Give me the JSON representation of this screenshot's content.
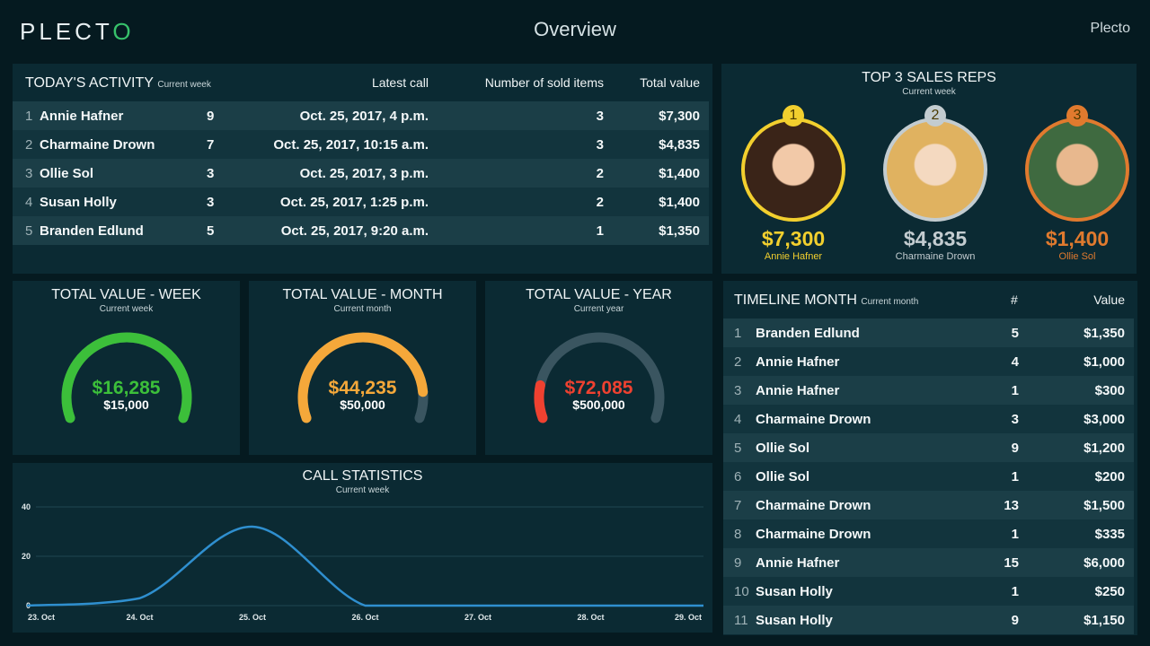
{
  "header": {
    "logo": "PLECT",
    "logo_mark": "O",
    "title": "Overview",
    "brand": "Plecto"
  },
  "activity": {
    "title": "TODAY'S ACTIVITY",
    "subtitle": "Current week",
    "columns": [
      "Latest call",
      "Number of sold items",
      "Total value"
    ],
    "rows": [
      {
        "rank": "1",
        "name": "Annie Hafner",
        "calls": "9",
        "latest": "Oct. 25, 2017, 4 p.m.",
        "items": "3",
        "value": "$7,300"
      },
      {
        "rank": "2",
        "name": "Charmaine Drown",
        "calls": "7",
        "latest": "Oct. 25, 2017, 10:15 a.m.",
        "items": "3",
        "value": "$4,835"
      },
      {
        "rank": "3",
        "name": "Ollie Sol",
        "calls": "3",
        "latest": "Oct. 25, 2017, 3 p.m.",
        "items": "2",
        "value": "$1,400"
      },
      {
        "rank": "4",
        "name": "Susan Holly",
        "calls": "3",
        "latest": "Oct. 25, 2017, 1:25 p.m.",
        "items": "2",
        "value": "$1,400"
      },
      {
        "rank": "5",
        "name": "Branden Edlund",
        "calls": "5",
        "latest": "Oct. 25, 2017, 9:20 a.m.",
        "items": "1",
        "value": "$1,350"
      }
    ]
  },
  "top3": {
    "title": "TOP 3 SALES REPS",
    "subtitle": "Current week",
    "reps": [
      {
        "rank": "1",
        "value": "$7,300",
        "name": "Annie Hafner",
        "color": "#f2cf2e"
      },
      {
        "rank": "2",
        "value": "$4,835",
        "name": "Charmaine Drown",
        "color": "#c3ccd0"
      },
      {
        "rank": "3",
        "value": "$1,400",
        "name": "Ollie Sol",
        "color": "#e07a2e"
      }
    ]
  },
  "gauges": [
    {
      "title": "TOTAL VALUE - WEEK",
      "subtitle": "Current week",
      "value": "$16,285",
      "target": "$15,000",
      "fraction": 1.0,
      "color": "#3cbf3a"
    },
    {
      "title": "TOTAL VALUE - MONTH",
      "subtitle": "Current month",
      "value": "$44,235",
      "target": "$50,000",
      "fraction": 0.885,
      "color": "#f5a83a"
    },
    {
      "title": "TOTAL VALUE - YEAR",
      "subtitle": "Current year",
      "value": "$72,085",
      "target": "$500,000",
      "fraction": 0.144,
      "color": "#ef4130"
    }
  ],
  "chart_data": {
    "type": "line",
    "title": "CALL STATISTICS",
    "subtitle": "Current week",
    "categories": [
      "23. Oct",
      "24. Oct",
      "25. Oct",
      "26. Oct",
      "27. Oct",
      "28. Oct",
      "29. Oct"
    ],
    "values": [
      0,
      3,
      32,
      0,
      0,
      0,
      0
    ],
    "yticks": [
      "0",
      "20",
      "40"
    ],
    "ylim": [
      0,
      40
    ],
    "grid": true,
    "color": "#2f8fcf"
  },
  "timeline": {
    "title": "TIMELINE MONTH",
    "subtitle": "Current month",
    "columns": [
      "#",
      "Value"
    ],
    "rows": [
      {
        "rank": "1",
        "name": "Branden Edlund",
        "count": "5",
        "value": "$1,350"
      },
      {
        "rank": "2",
        "name": "Annie Hafner",
        "count": "4",
        "value": "$1,000"
      },
      {
        "rank": "3",
        "name": "Annie Hafner",
        "count": "1",
        "value": "$300"
      },
      {
        "rank": "4",
        "name": "Charmaine Drown",
        "count": "3",
        "value": "$3,000"
      },
      {
        "rank": "5",
        "name": "Ollie Sol",
        "count": "9",
        "value": "$1,200"
      },
      {
        "rank": "6",
        "name": "Ollie Sol",
        "count": "1",
        "value": "$200"
      },
      {
        "rank": "7",
        "name": "Charmaine Drown",
        "count": "13",
        "value": "$1,500"
      },
      {
        "rank": "8",
        "name": "Charmaine Drown",
        "count": "1",
        "value": "$335"
      },
      {
        "rank": "9",
        "name": "Annie Hafner",
        "count": "15",
        "value": "$6,000"
      },
      {
        "rank": "10",
        "name": "Susan Holly",
        "count": "1",
        "value": "$250"
      },
      {
        "rank": "11",
        "name": "Susan Holly",
        "count": "9",
        "value": "$1,150"
      }
    ]
  }
}
